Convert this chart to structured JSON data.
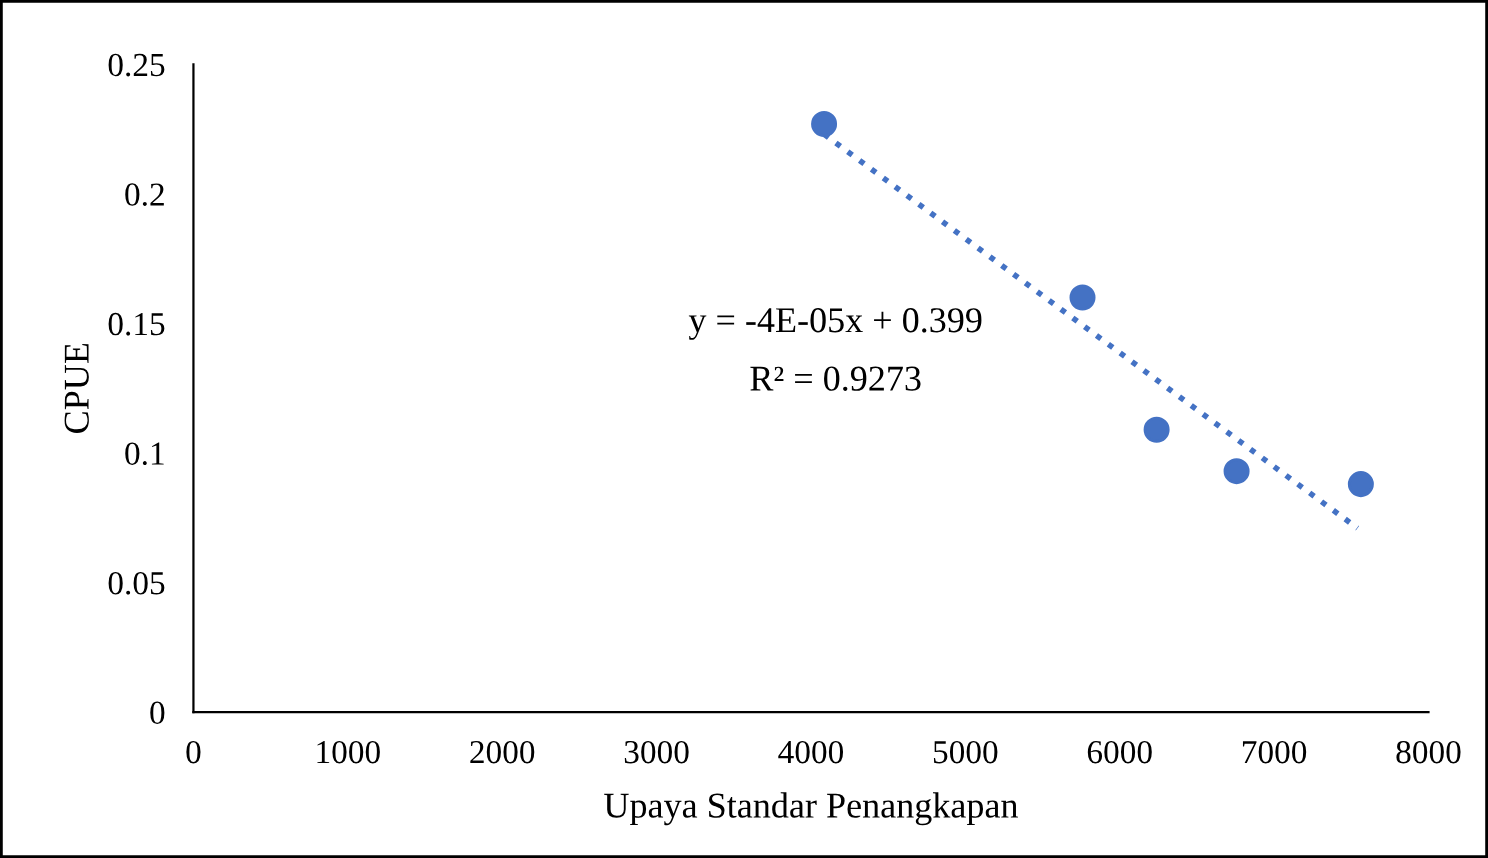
{
  "chart_data": {
    "type": "scatter",
    "xlabel": "Upaya Standar Penangkapan",
    "ylabel": "CPUE",
    "x": [
      4085,
      5759,
      6239,
      6757,
      7562
    ],
    "values": [
      0.227,
      0.16,
      0.109,
      0.093,
      0.088
    ],
    "color": "#4472c4",
    "marker": "circle",
    "series": [
      {
        "type": "line",
        "x": [
          4085,
          7540
        ],
        "values": [
          0.223,
          0.071
        ],
        "color": "#4472c4",
        "line_style": "dotted",
        "marker": "none"
      }
    ],
    "annotations": [
      "y = -4E-05x + 0.399",
      "R² = 0.9273"
    ],
    "xlim": [
      0,
      8000
    ],
    "xticks": [
      0,
      1000,
      2000,
      3000,
      4000,
      5000,
      6000,
      7000,
      8000
    ],
    "ylim": [
      0,
      0.25
    ],
    "yticks": [
      0,
      0.05,
      0.1,
      0.15,
      0.2,
      0.25
    ],
    "grid": false,
    "legend": false
  }
}
